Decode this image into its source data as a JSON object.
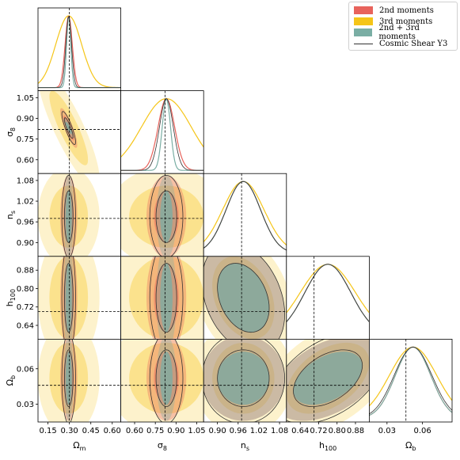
{
  "chart_data": {
    "type": "corner",
    "parameters": [
      {
        "key": "Om",
        "label": "Ω_m",
        "range": [
          0.08,
          0.66
        ],
        "ticks": [
          0.15,
          0.3,
          0.45,
          0.6
        ],
        "tick_labels": [
          "0.15",
          "0.30",
          "0.45",
          "0.60"
        ],
        "fiducial": 0.3
      },
      {
        "key": "s8",
        "label": "σ_8",
        "range": [
          0.5,
          1.1
        ],
        "ticks": [
          0.6,
          0.75,
          0.9,
          1.05
        ],
        "tick_labels": [
          "0.60",
          "0.75",
          "0.90",
          "1.05"
        ],
        "fiducial": 0.82
      },
      {
        "key": "ns",
        "label": "n_s",
        "range": [
          0.86,
          1.1
        ],
        "ticks": [
          0.9,
          0.96,
          1.02,
          1.08
        ],
        "tick_labels": [
          "0.90",
          "0.96",
          "1.02",
          "1.08"
        ],
        "fiducial": 0.97
      },
      {
        "key": "h",
        "label": "h_100",
        "range": [
          0.58,
          0.94
        ],
        "ticks": [
          0.64,
          0.72,
          0.8,
          0.88
        ],
        "tick_labels": [
          "0.64",
          "0.72",
          "0.80",
          "0.88"
        ],
        "fiducial": 0.7
      },
      {
        "key": "Ob",
        "label": "Ω_b",
        "range": [
          0.015,
          0.085
        ],
        "ticks": [
          0.03,
          0.06
        ],
        "tick_labels": [
          "0.03",
          "0.06"
        ],
        "fiducial": 0.046
      }
    ],
    "series": [
      {
        "name": "2nd moments",
        "color": "#e8635c"
      },
      {
        "name": "3rd moments",
        "color": "#f5c518"
      },
      {
        "name": "2nd + 3rd moments",
        "color": "#7aaea4"
      },
      {
        "name": "Cosmic Shear Y3",
        "color": "#333333"
      }
    ],
    "legend_position": "top-right",
    "fiducial_lines": "dashed black"
  }
}
